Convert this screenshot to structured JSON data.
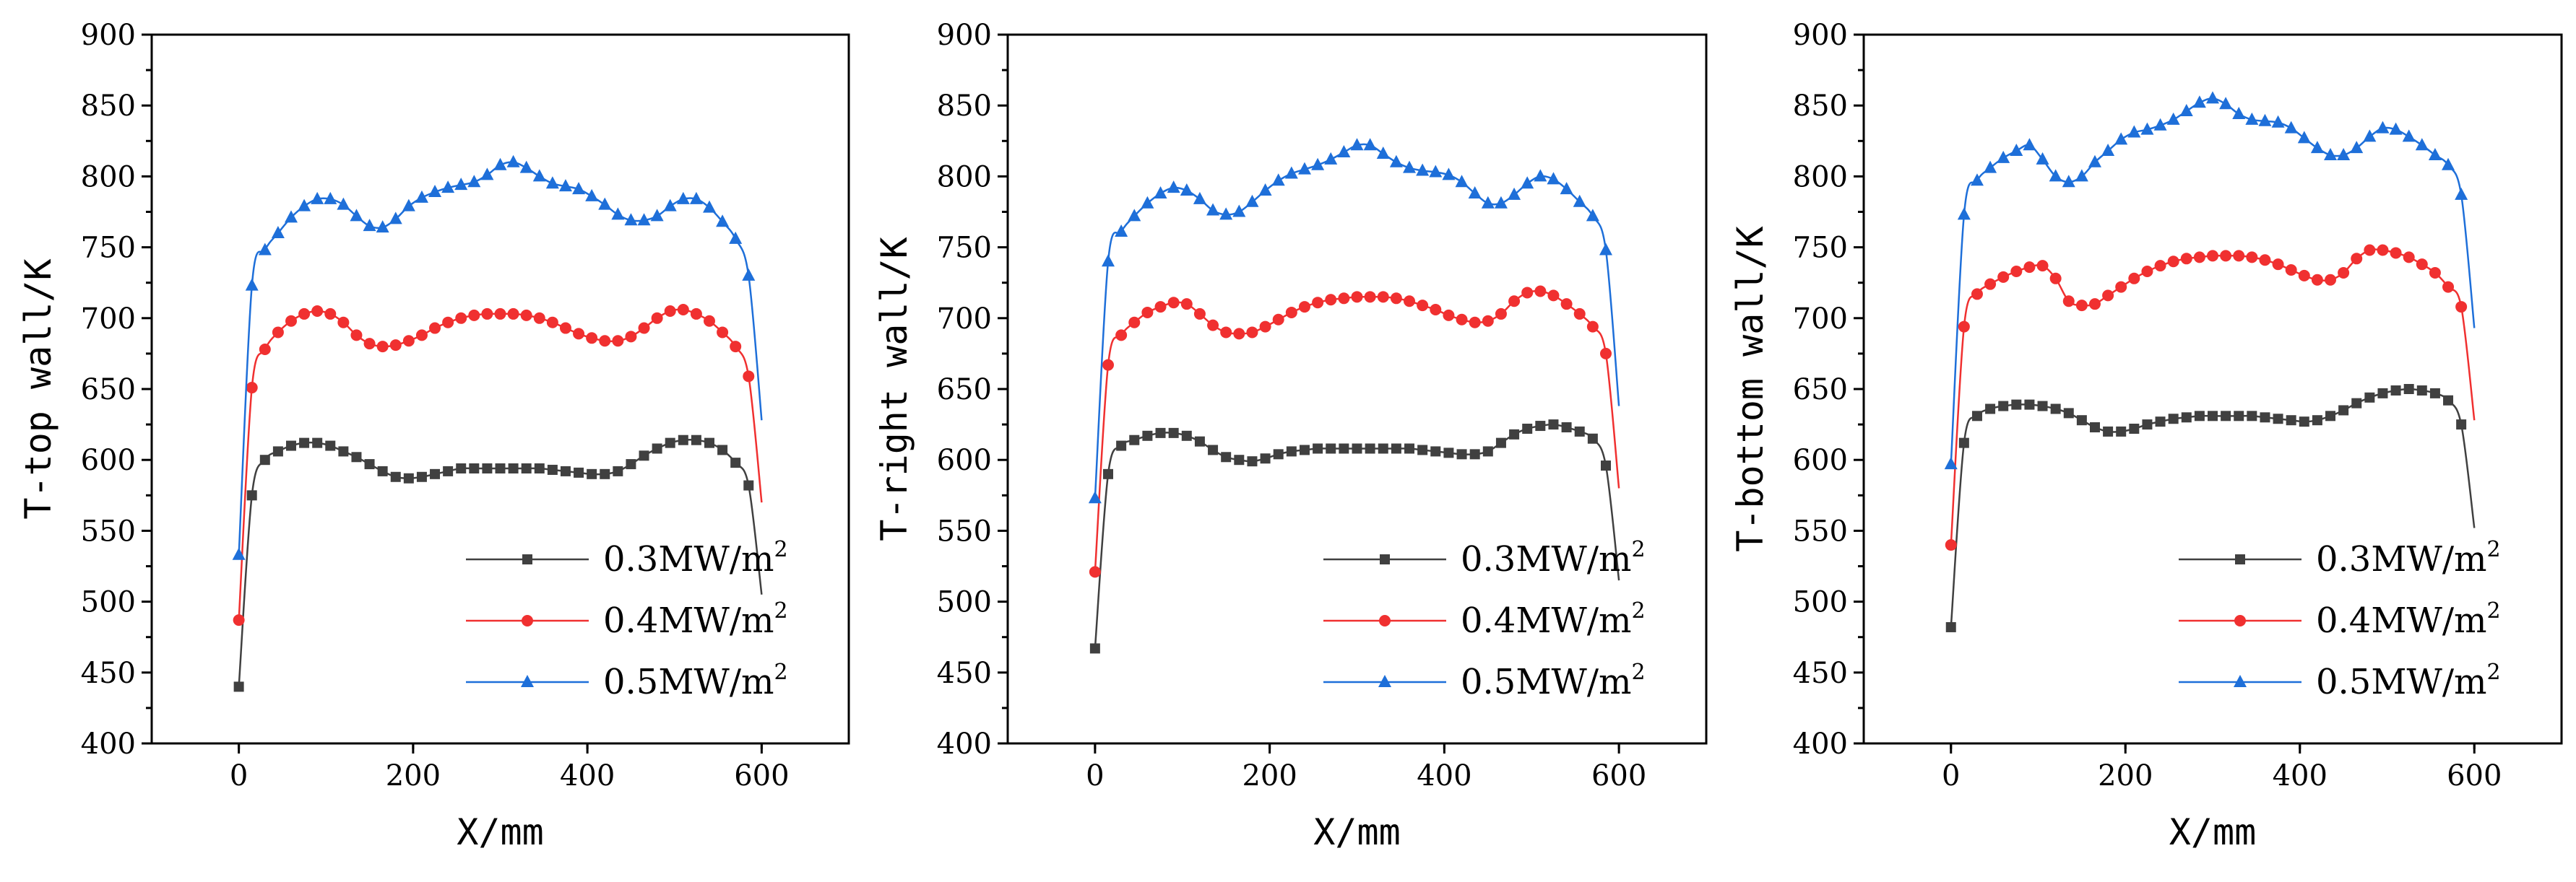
{
  "chart_data": [
    {
      "type": "line",
      "title": "",
      "xlabel": "X/mm",
      "ylabel": "T-top wall/K",
      "xlim": [
        -100,
        700
      ],
      "ylim": [
        400,
        900
      ],
      "xticks": [
        0,
        200,
        400,
        600
      ],
      "yticks": [
        400,
        450,
        500,
        550,
        600,
        650,
        700,
        750,
        800,
        850,
        900
      ],
      "xtick_labels": [
        "0",
        "200",
        "400",
        "600"
      ],
      "ytick_labels": [
        "400",
        "450",
        "500",
        "550",
        "600",
        "650",
        "700",
        "750",
        "800",
        "850",
        "900"
      ],
      "legend_position": "bottom-right",
      "series": [
        {
          "name": "0.3MW/m",
          "sup": "2",
          "color": "#404040",
          "marker": "square",
          "x": [
            0,
            15,
            30,
            45,
            60,
            75,
            90,
            105,
            120,
            135,
            150,
            165,
            180,
            195,
            210,
            225,
            240,
            255,
            270,
            285,
            300,
            315,
            330,
            345,
            360,
            375,
            390,
            405,
            420,
            435,
            450,
            465,
            480,
            495,
            510,
            525,
            540,
            555,
            570,
            585,
            600
          ],
          "y": [
            440,
            575,
            600,
            606,
            610,
            612,
            612,
            610,
            606,
            602,
            597,
            592,
            588,
            587,
            588,
            590,
            592,
            594,
            594,
            594,
            594,
            594,
            594,
            594,
            593,
            592,
            591,
            590,
            590,
            592,
            597,
            603,
            608,
            612,
            614,
            614,
            612,
            607,
            598,
            582,
            505
          ]
        },
        {
          "name": "0.4MW/m",
          "sup": "2",
          "color": "#f03030",
          "marker": "circle",
          "x": [
            0,
            15,
            30,
            45,
            60,
            75,
            90,
            105,
            120,
            135,
            150,
            165,
            180,
            195,
            210,
            225,
            240,
            255,
            270,
            285,
            300,
            315,
            330,
            345,
            360,
            375,
            390,
            405,
            420,
            435,
            450,
            465,
            480,
            495,
            510,
            525,
            540,
            555,
            570,
            585,
            600
          ],
          "y": [
            487,
            651,
            678,
            690,
            698,
            703,
            705,
            703,
            697,
            688,
            682,
            680,
            681,
            684,
            688,
            693,
            697,
            700,
            702,
            703,
            703,
            703,
            702,
            700,
            697,
            693,
            689,
            686,
            684,
            684,
            687,
            693,
            700,
            705,
            706,
            703,
            698,
            690,
            680,
            659,
            570
          ]
        },
        {
          "name": "0.5MW/m",
          "sup": "2",
          "color": "#1e6fd9",
          "marker": "triangle",
          "x": [
            0,
            15,
            30,
            45,
            60,
            75,
            90,
            105,
            120,
            135,
            150,
            165,
            180,
            195,
            210,
            225,
            240,
            255,
            270,
            285,
            300,
            315,
            330,
            345,
            360,
            375,
            390,
            405,
            420,
            435,
            450,
            465,
            480,
            495,
            510,
            525,
            540,
            555,
            570,
            585,
            600
          ],
          "y": [
            533,
            723,
            748,
            760,
            771,
            779,
            784,
            784,
            780,
            772,
            765,
            764,
            770,
            779,
            785,
            789,
            792,
            794,
            796,
            801,
            808,
            810,
            806,
            800,
            795,
            793,
            791,
            786,
            780,
            773,
            769,
            769,
            772,
            779,
            784,
            784,
            778,
            768,
            756,
            730,
            628
          ]
        }
      ]
    },
    {
      "type": "line",
      "title": "",
      "xlabel": "X/mm",
      "ylabel": "T-right wall/K",
      "xlim": [
        -100,
        700
      ],
      "ylim": [
        400,
        900
      ],
      "xticks": [
        0,
        200,
        400,
        600
      ],
      "yticks": [
        400,
        450,
        500,
        550,
        600,
        650,
        700,
        750,
        800,
        850,
        900
      ],
      "xtick_labels": [
        "0",
        "200",
        "400",
        "600"
      ],
      "ytick_labels": [
        "400",
        "450",
        "500",
        "550",
        "600",
        "650",
        "700",
        "750",
        "800",
        "850",
        "900"
      ],
      "legend_position": "bottom-right",
      "series": [
        {
          "name": "0.3MW/m",
          "sup": "2",
          "color": "#404040",
          "marker": "square",
          "x": [
            0,
            15,
            30,
            45,
            60,
            75,
            90,
            105,
            120,
            135,
            150,
            165,
            180,
            195,
            210,
            225,
            240,
            255,
            270,
            285,
            300,
            315,
            330,
            345,
            360,
            375,
            390,
            405,
            420,
            435,
            450,
            465,
            480,
            495,
            510,
            525,
            540,
            555,
            570,
            585,
            600
          ],
          "y": [
            467,
            590,
            610,
            614,
            617,
            619,
            619,
            617,
            613,
            607,
            602,
            600,
            599,
            601,
            604,
            606,
            607,
            608,
            608,
            608,
            608,
            608,
            608,
            608,
            608,
            607,
            606,
            605,
            604,
            604,
            606,
            612,
            618,
            622,
            624,
            625,
            623,
            620,
            615,
            596,
            515
          ]
        },
        {
          "name": "0.4MW/m",
          "sup": "2",
          "color": "#f03030",
          "marker": "circle",
          "x": [
            0,
            15,
            30,
            45,
            60,
            75,
            90,
            105,
            120,
            135,
            150,
            165,
            180,
            195,
            210,
            225,
            240,
            255,
            270,
            285,
            300,
            315,
            330,
            345,
            360,
            375,
            390,
            405,
            420,
            435,
            450,
            465,
            480,
            495,
            510,
            525,
            540,
            555,
            570,
            585,
            600
          ],
          "y": [
            521,
            667,
            688,
            697,
            704,
            708,
            711,
            710,
            703,
            695,
            690,
            689,
            690,
            694,
            699,
            704,
            708,
            711,
            713,
            714,
            715,
            715,
            715,
            714,
            712,
            709,
            706,
            702,
            699,
            697,
            698,
            703,
            712,
            718,
            719,
            716,
            710,
            703,
            694,
            675,
            580
          ]
        },
        {
          "name": "0.5MW/m",
          "sup": "2",
          "color": "#1e6fd9",
          "marker": "triangle",
          "x": [
            0,
            15,
            30,
            45,
            60,
            75,
            90,
            105,
            120,
            135,
            150,
            165,
            180,
            195,
            210,
            225,
            240,
            255,
            270,
            285,
            300,
            315,
            330,
            345,
            360,
            375,
            390,
            405,
            420,
            435,
            450,
            465,
            480,
            495,
            510,
            525,
            540,
            555,
            570,
            585,
            600
          ],
          "y": [
            573,
            740,
            761,
            772,
            781,
            788,
            792,
            790,
            784,
            776,
            773,
            775,
            782,
            790,
            797,
            802,
            805,
            808,
            812,
            817,
            822,
            822,
            816,
            810,
            806,
            804,
            803,
            801,
            796,
            788,
            781,
            781,
            787,
            795,
            800,
            798,
            791,
            782,
            772,
            748,
            638
          ]
        }
      ]
    },
    {
      "type": "line",
      "title": "",
      "xlabel": "X/mm",
      "ylabel": "T-bottom wall/K",
      "xlim": [
        -100,
        700
      ],
      "ylim": [
        400,
        900
      ],
      "xticks": [
        0,
        200,
        400,
        600
      ],
      "yticks": [
        400,
        450,
        500,
        550,
        600,
        650,
        700,
        750,
        800,
        850,
        900
      ],
      "xtick_labels": [
        "0",
        "200",
        "400",
        "600"
      ],
      "ytick_labels": [
        "400",
        "450",
        "500",
        "550",
        "600",
        "650",
        "700",
        "750",
        "800",
        "850",
        "900"
      ],
      "legend_position": "bottom-right",
      "series": [
        {
          "name": "0.3MW/m",
          "sup": "2",
          "color": "#404040",
          "marker": "square",
          "x": [
            0,
            15,
            30,
            45,
            60,
            75,
            90,
            105,
            120,
            135,
            150,
            165,
            180,
            195,
            210,
            225,
            240,
            255,
            270,
            285,
            300,
            315,
            330,
            345,
            360,
            375,
            390,
            405,
            420,
            435,
            450,
            465,
            480,
            495,
            510,
            525,
            540,
            555,
            570,
            585,
            600
          ],
          "y": [
            482,
            612,
            631,
            636,
            638,
            639,
            639,
            638,
            636,
            633,
            628,
            623,
            620,
            620,
            622,
            625,
            627,
            629,
            630,
            631,
            631,
            631,
            631,
            631,
            630,
            629,
            628,
            627,
            628,
            631,
            635,
            640,
            644,
            647,
            649,
            650,
            649,
            647,
            642,
            625,
            552
          ]
        },
        {
          "name": "0.4MW/m",
          "sup": "2",
          "color": "#f03030",
          "marker": "circle",
          "x": [
            0,
            15,
            30,
            45,
            60,
            75,
            90,
            105,
            120,
            135,
            150,
            165,
            180,
            195,
            210,
            225,
            240,
            255,
            270,
            285,
            300,
            315,
            330,
            345,
            360,
            375,
            390,
            405,
            420,
            435,
            450,
            465,
            480,
            495,
            510,
            525,
            540,
            555,
            570,
            585,
            600
          ],
          "y": [
            540,
            694,
            717,
            724,
            729,
            733,
            736,
            737,
            728,
            712,
            709,
            710,
            716,
            722,
            728,
            733,
            737,
            740,
            742,
            743,
            744,
            744,
            744,
            743,
            741,
            738,
            734,
            730,
            727,
            727,
            732,
            742,
            748,
            748,
            746,
            743,
            738,
            732,
            722,
            708,
            628
          ]
        },
        {
          "name": "0.5MW/m",
          "sup": "2",
          "color": "#1e6fd9",
          "marker": "triangle",
          "x": [
            0,
            15,
            30,
            45,
            60,
            75,
            90,
            105,
            120,
            135,
            150,
            165,
            180,
            195,
            210,
            225,
            240,
            255,
            270,
            285,
            300,
            315,
            330,
            345,
            360,
            375,
            390,
            405,
            420,
            435,
            450,
            465,
            480,
            495,
            510,
            525,
            540,
            555,
            570,
            585,
            600
          ],
          "y": [
            597,
            773,
            797,
            806,
            813,
            818,
            822,
            812,
            800,
            796,
            800,
            810,
            818,
            826,
            831,
            833,
            836,
            840,
            846,
            852,
            855,
            851,
            844,
            840,
            839,
            838,
            834,
            827,
            820,
            815,
            815,
            820,
            828,
            834,
            833,
            828,
            822,
            815,
            808,
            787,
            693
          ]
        }
      ]
    }
  ]
}
